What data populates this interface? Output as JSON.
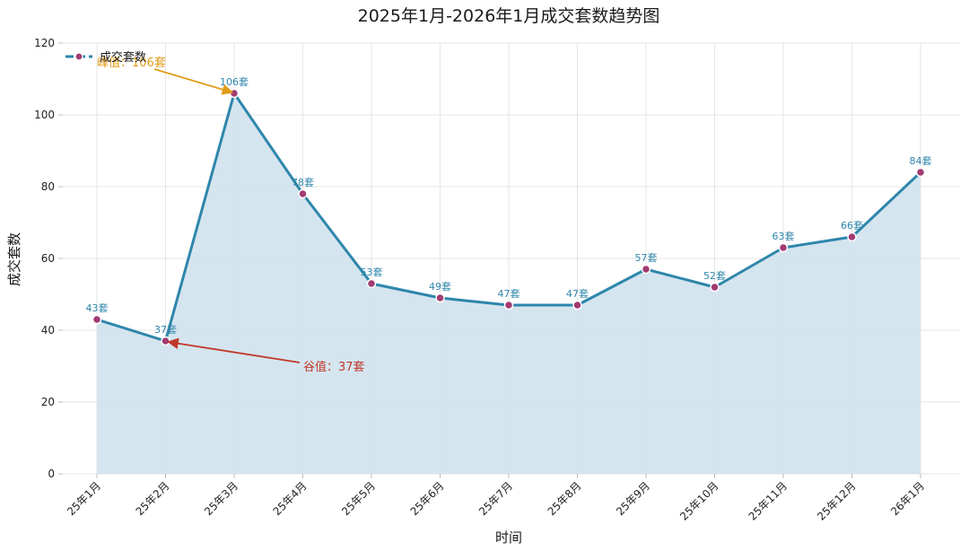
{
  "chart_data": {
    "type": "line",
    "title": "2025年1月-2026年1月成交套数趋势图",
    "xlabel": "时间",
    "ylabel": "成交套数",
    "categories": [
      "25年1月",
      "25年2月",
      "25年3月",
      "25年4月",
      "25年5月",
      "25年6月",
      "25年7月",
      "25年8月",
      "25年9月",
      "25年10月",
      "25年11月",
      "25年12月",
      "26年1月"
    ],
    "series": [
      {
        "name": "成交套数",
        "values": [
          43,
          37,
          106,
          78,
          53,
          49,
          47,
          47,
          57,
          52,
          63,
          66,
          84
        ],
        "data_labels": [
          "43套",
          "37套",
          "106套",
          "78套",
          "53套",
          "49套",
          "47套",
          "47套",
          "57套",
          "52套",
          "63套",
          "66套",
          "84套"
        ]
      }
    ],
    "ylim": [
      0,
      120
    ],
    "yticks": [
      0,
      20,
      40,
      60,
      80,
      100,
      120
    ],
    "grid": true,
    "area_fill": true,
    "legend_position": "top-left",
    "annotations": [
      {
        "text": "峰值：106套",
        "target_index": 2,
        "kind": "peak"
      },
      {
        "text": "谷值：37套",
        "target_index": 1,
        "kind": "trough"
      }
    ],
    "colors": {
      "line": "#2e86ab",
      "fill": "#d3e4ee",
      "marker": "#a23b72",
      "label": "#2e86ab",
      "peak": "#e09c1a",
      "trough": "#c0392b",
      "grid": "#e6e6e6"
    }
  }
}
